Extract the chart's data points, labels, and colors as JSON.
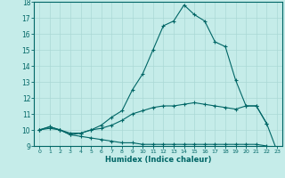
{
  "xlabel": "Humidex (Indice chaleur)",
  "bg_color": "#c5ece9",
  "grid_color": "#aad8d5",
  "line_color": "#006666",
  "xlim": [
    -0.5,
    23.5
  ],
  "ylim": [
    9,
    18
  ],
  "xticks": [
    0,
    1,
    2,
    3,
    4,
    5,
    6,
    7,
    8,
    9,
    10,
    11,
    12,
    13,
    14,
    15,
    16,
    17,
    18,
    19,
    20,
    21,
    22,
    23
  ],
  "yticks": [
    9,
    10,
    11,
    12,
    13,
    14,
    15,
    16,
    17,
    18
  ],
  "curve1_x": [
    0,
    1,
    2,
    3,
    4,
    5,
    6,
    7,
    8,
    9,
    10,
    11,
    12,
    13,
    14,
    15,
    16,
    17,
    18,
    19,
    20,
    21,
    22
  ],
  "curve1_y": [
    10.0,
    10.2,
    10.0,
    9.7,
    9.8,
    10.0,
    10.3,
    10.8,
    11.2,
    12.5,
    13.5,
    15.0,
    16.5,
    16.8,
    17.8,
    17.2,
    16.8,
    15.5,
    15.2,
    13.1,
    11.5,
    11.5,
    10.4
  ],
  "curve2_x": [
    0,
    1,
    2,
    3,
    4,
    5,
    6,
    7,
    8,
    9,
    10,
    11,
    12,
    13,
    14,
    15,
    16,
    17,
    18,
    19,
    20,
    21,
    22,
    23
  ],
  "curve2_y": [
    10.0,
    10.2,
    10.0,
    9.8,
    9.8,
    10.0,
    10.1,
    10.3,
    10.6,
    11.0,
    11.2,
    11.4,
    11.5,
    11.5,
    11.6,
    11.7,
    11.6,
    11.5,
    11.4,
    11.3,
    11.5,
    11.5,
    10.4,
    8.7
  ],
  "curve3_x": [
    0,
    1,
    2,
    3,
    4,
    5,
    6,
    7,
    8,
    9,
    10,
    11,
    12,
    13,
    14,
    15,
    16,
    17,
    18,
    19,
    20,
    21,
    22,
    23
  ],
  "curve3_y": [
    10.0,
    10.1,
    10.0,
    9.7,
    9.6,
    9.5,
    9.4,
    9.3,
    9.2,
    9.2,
    9.1,
    9.1,
    9.1,
    9.1,
    9.1,
    9.1,
    9.1,
    9.1,
    9.1,
    9.1,
    9.1,
    9.1,
    9.0,
    8.7
  ]
}
